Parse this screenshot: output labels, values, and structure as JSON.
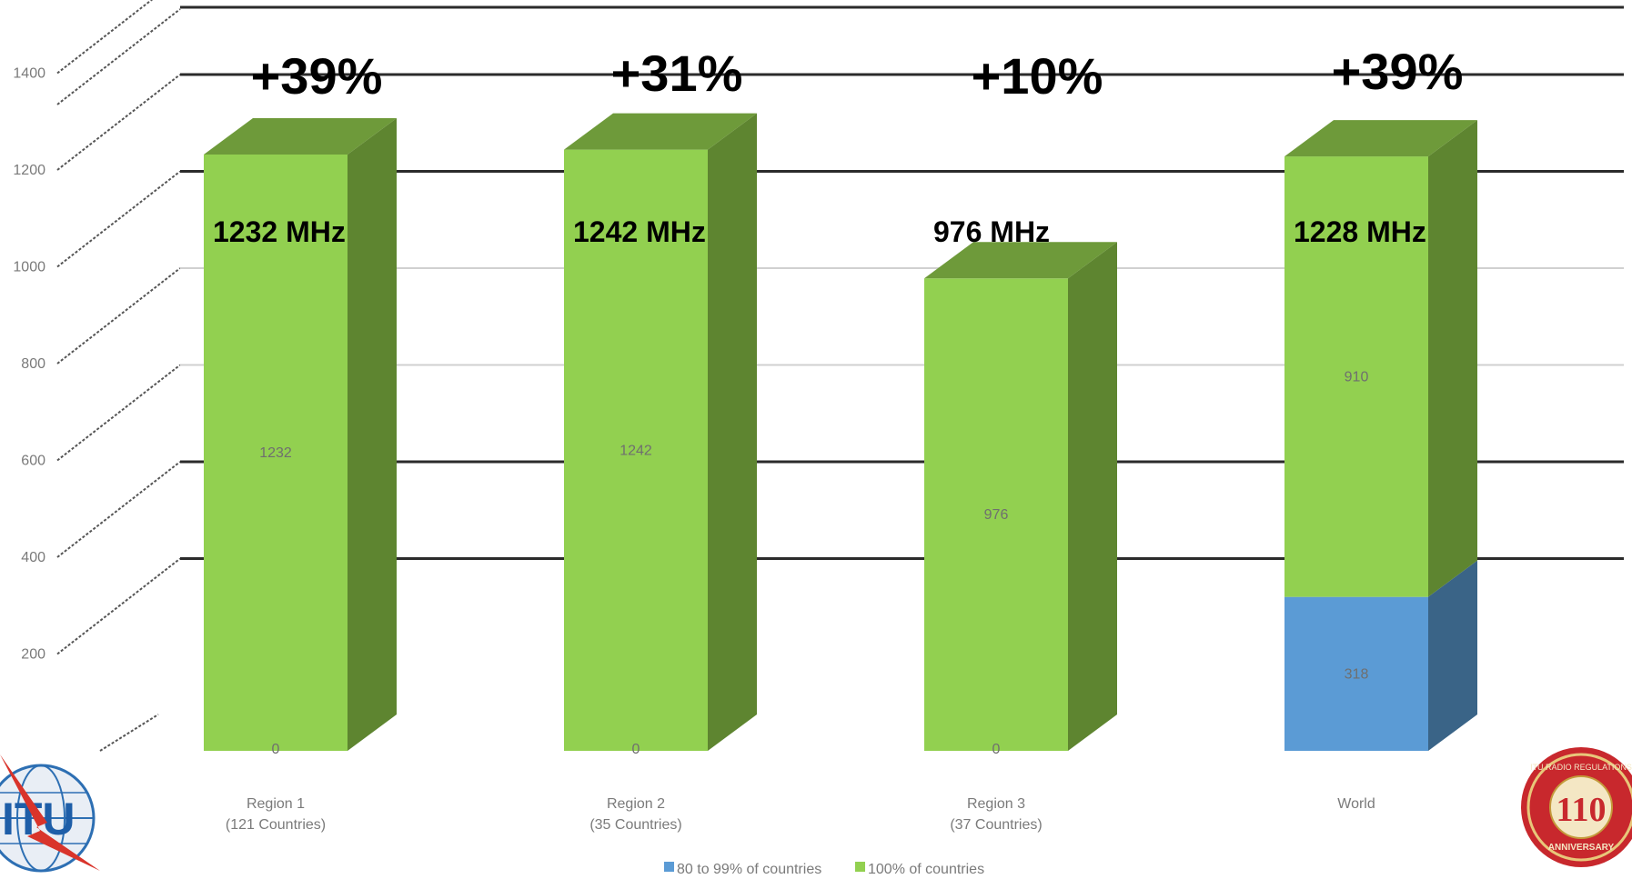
{
  "colors": {
    "green_front": "#92d050",
    "green_side": "#5e8530",
    "green_top": "#6e9a3a",
    "blue_front": "#5b9bd5",
    "blue_side": "#3a6487",
    "blue_top": "#4a7eab",
    "gridline_major": "#2b2b2b",
    "gridline_minor": "#d0d0d0"
  },
  "chart_data": {
    "type": "bar",
    "stacked": true,
    "three_d": true,
    "categories": [
      [
        "Region 1",
        "(121 Countries)"
      ],
      [
        "Region 2",
        "(35 Countries)"
      ],
      [
        "Region 3",
        "(37 Countries)"
      ],
      [
        "World"
      ]
    ],
    "series": [
      {
        "name": "80 to 99% of countries",
        "color": "#5b9bd5",
        "values": [
          0,
          0,
          0,
          318
        ]
      },
      {
        "name": "100% of countries",
        "color": "#92d050",
        "values": [
          1232,
          1242,
          976,
          910
        ]
      }
    ],
    "segment_labels": [
      [
        "0",
        "0",
        "0",
        "318"
      ],
      [
        "1232",
        "1242",
        "976",
        "910"
      ]
    ],
    "annotations": {
      "growth": [
        "+39%",
        "+31%",
        "+10%",
        "+39%"
      ],
      "totals": [
        "1232 MHz",
        "1242 MHz",
        "976 MHz",
        "1228 MHz"
      ]
    },
    "y_ticks": [
      200,
      400,
      600,
      800,
      1000,
      1200,
      1400
    ],
    "ylim": [
      0,
      1400
    ],
    "grid": true,
    "legend_position": "bottom",
    "title": "",
    "xlabel": "",
    "ylabel": ""
  }
}
